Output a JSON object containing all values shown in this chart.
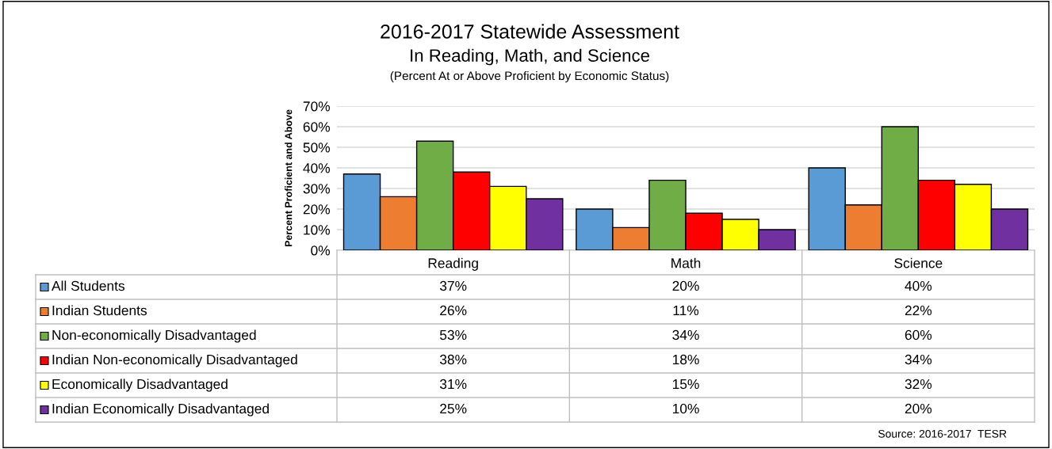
{
  "chart_data": {
    "type": "bar",
    "title": "2016-2017 Statewide Assessment",
    "subtitle": "In Reading, Math, and Science",
    "ylabel": "Percent Proficient and Above",
    "annotations": [
      "(Percent At or Above Proficient by Economic Status)",
      "Source: 2016-2017  TESR"
    ],
    "categories": [
      "Reading",
      "Math",
      "Science"
    ],
    "series": [
      {
        "name": "All Students",
        "color": "#5b9bd5",
        "values": [
          37,
          20,
          40
        ],
        "value_labels": [
          "37%",
          "20%",
          "40%"
        ]
      },
      {
        "name": "Indian Students",
        "color": "#ed7d31",
        "values": [
          26,
          11,
          22
        ],
        "value_labels": [
          "26%",
          "11%",
          "22%"
        ]
      },
      {
        "name": "Non-economically Disadvantaged",
        "color": "#70ad47",
        "values": [
          53,
          34,
          60
        ],
        "value_labels": [
          "53%",
          "34%",
          "60%"
        ]
      },
      {
        "name": "Indian Non-economically Disadvantaged",
        "color": "#ff0000",
        "values": [
          38,
          18,
          34
        ],
        "value_labels": [
          "38%",
          "18%",
          "34%"
        ]
      },
      {
        "name": "Economically Disadvantaged",
        "color": "#ffff00",
        "values": [
          31,
          15,
          32
        ],
        "value_labels": [
          "31%",
          "15%",
          "32%"
        ]
      },
      {
        "name": "Indian Economically Disadvantaged",
        "color": "#7030a0",
        "values": [
          25,
          10,
          20
        ],
        "value_labels": [
          "25%",
          "10%",
          "20%"
        ]
      }
    ],
    "ylim": [
      0,
      70
    ],
    "yticks": [
      {
        "value": 0,
        "label": "0%"
      },
      {
        "value": 10,
        "label": "10%"
      },
      {
        "value": 20,
        "label": "20%"
      },
      {
        "value": 30,
        "label": "30%"
      },
      {
        "value": 40,
        "label": "40%"
      },
      {
        "value": 50,
        "label": "50%"
      },
      {
        "value": 60,
        "label": "60%"
      },
      {
        "value": 70,
        "label": "70%"
      }
    ],
    "grid": "y",
    "legend": "bottom"
  }
}
